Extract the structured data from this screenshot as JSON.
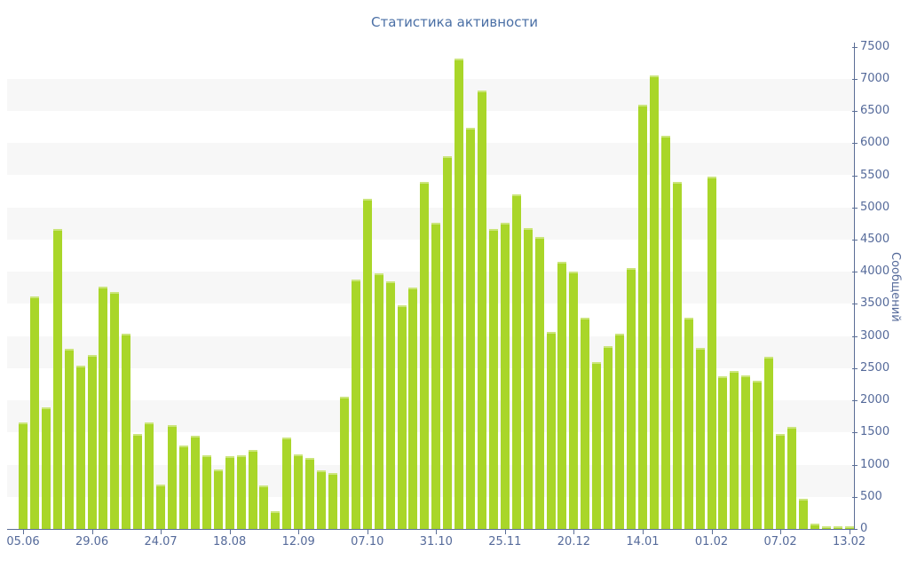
{
  "title": "Статистика активности",
  "y_axis": {
    "label": "Сообщений",
    "min": 0,
    "max": 7500,
    "step": 500,
    "tick_labels": [
      "0",
      "500",
      "1000",
      "1500",
      "2000",
      "2500",
      "3000",
      "3500",
      "4000",
      "4500",
      "5000",
      "5500",
      "6000",
      "6500",
      "7000",
      "7500"
    ]
  },
  "x_axis": {
    "labels": [
      "05.06",
      "29.06",
      "24.07",
      "18.08",
      "12.09",
      "07.10",
      "31.10",
      "25.11",
      "20.12",
      "14.01",
      "01.02",
      "07.02",
      "13.02"
    ],
    "label_every_n_bars": 6
  },
  "chart_data": {
    "type": "bar",
    "title": "Статистика активности",
    "ylabel": "Сообщений",
    "ylim": [
      0,
      7500
    ],
    "grid": "alternating horizontal bands every 500, gray bands from 500-1000 up to 6500-7000",
    "legend": "none",
    "categories": [
      "05.06",
      "29.06",
      "24.07",
      "18.08",
      "12.09",
      "07.10",
      "31.10",
      "25.11",
      "20.12",
      "14.01",
      "01.02",
      "07.02",
      "13.02"
    ],
    "category_interval": 6,
    "values": [
      1660,
      3620,
      1890,
      4660,
      2800,
      2540,
      2700,
      3770,
      3680,
      3030,
      1480,
      1660,
      690,
      1620,
      1300,
      1450,
      1150,
      930,
      1130,
      1140,
      1230,
      680,
      270,
      1420,
      1160,
      1110,
      910,
      870,
      2050,
      3880,
      5140,
      3980,
      3850,
      3480,
      3760,
      5400,
      4760,
      5800,
      7310,
      6240,
      6820,
      4660,
      4760,
      5210,
      4680,
      4540,
      3070,
      4150,
      4000,
      3280,
      2590,
      2840,
      3030,
      4060,
      6600,
      7050,
      6120,
      5400,
      3280,
      2820,
      5480,
      2380,
      2450,
      2390,
      2300,
      2680,
      1470,
      1590,
      470,
      80,
      40,
      40,
      40
    ]
  },
  "colors": {
    "bar": "#a9d629",
    "bar_cap": "#cbe57b",
    "band": "#f7f7f7",
    "axis": "#5b6e96",
    "tick_label": "#556a9a",
    "title": "#4a6fa5",
    "background": "#ffffff"
  }
}
